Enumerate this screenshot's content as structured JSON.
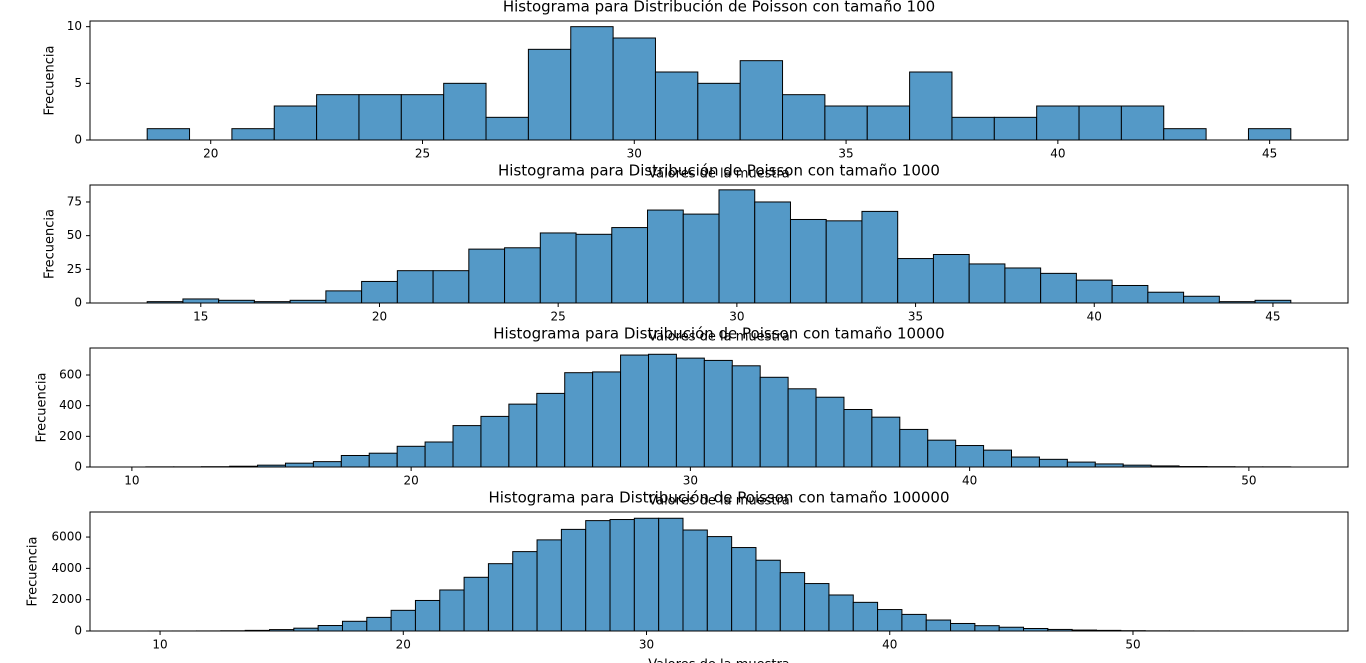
{
  "chart_data": [
    {
      "type": "histogram",
      "title": "Histograma para Distribución de Poisson con tamaño 100",
      "x_label": "Valores de la muestra",
      "y_label": "Frecuencia",
      "color": "#5499c7",
      "bins": [
        18.5,
        19.5,
        20.5,
        21.5,
        22.5,
        23.5,
        24.5,
        25.5,
        26.5,
        27.5,
        28.5,
        29.5,
        30.5,
        31.5,
        32.5,
        33.5,
        34.5,
        35.5,
        36.5,
        37.5,
        38.5,
        39.5,
        40.5,
        41.5,
        42.5,
        43.5,
        44.5,
        45.5
      ],
      "counts": [
        1,
        0,
        1,
        3,
        4,
        4,
        4,
        5,
        2,
        8,
        10,
        9,
        6,
        5,
        7,
        4,
        3,
        3,
        6,
        2,
        2,
        3,
        3,
        3,
        1,
        0,
        1
      ],
      "xlim": [
        17.15,
        46.85
      ],
      "xticks": [
        20,
        25,
        30,
        35,
        40,
        45
      ],
      "ylim": [
        0,
        10.5
      ],
      "yticks": [
        0,
        5,
        10
      ]
    },
    {
      "type": "histogram",
      "title": "Histograma para Distribución de Poisson con tamaño 1000",
      "x_label": "Valores de la muestra",
      "y_label": "Frecuencia",
      "color": "#5499c7",
      "bins": [
        13.5,
        14.5,
        15.5,
        16.5,
        17.5,
        18.5,
        19.5,
        20.5,
        21.5,
        22.5,
        23.5,
        24.5,
        25.5,
        26.5,
        27.5,
        28.5,
        29.5,
        30.5,
        31.5,
        32.5,
        33.5,
        34.5,
        35.5,
        36.5,
        37.5,
        38.5,
        39.5,
        40.5,
        41.5,
        42.5,
        43.5,
        44.5,
        45.5
      ],
      "counts": [
        1,
        3,
        2,
        1,
        2,
        9,
        16,
        24,
        24,
        40,
        41,
        52,
        51,
        56,
        69,
        66,
        84,
        75,
        62,
        61,
        68,
        33,
        36,
        29,
        26,
        22,
        17,
        13,
        8,
        5,
        1,
        2
      ],
      "xlim": [
        11.9,
        47.1
      ],
      "xticks": [
        15,
        20,
        25,
        30,
        35,
        40,
        45
      ],
      "ylim": [
        0,
        87.6
      ],
      "yticks": [
        0,
        25,
        50,
        75
      ]
    },
    {
      "type": "histogram",
      "title": "Histograma para Distribución de Poisson con tamaño 10000",
      "x_label": "Valores de la muestra",
      "y_label": "Frecuencia",
      "color": "#5499c7",
      "bins": [
        10.5,
        11.5,
        12.5,
        13.5,
        14.5,
        15.5,
        16.5,
        17.5,
        18.5,
        19.5,
        20.5,
        21.5,
        22.5,
        23.5,
        24.5,
        25.5,
        26.5,
        27.5,
        28.5,
        29.5,
        30.5,
        31.5,
        32.5,
        33.5,
        34.5,
        35.5,
        36.5,
        37.5,
        38.5,
        39.5,
        40.5,
        41.5,
        42.5,
        43.5,
        44.5,
        45.5,
        46.5,
        47.5,
        48.5,
        49.5,
        50.5,
        51.5
      ],
      "counts": [
        1,
        1,
        2,
        5,
        12,
        25,
        35,
        75,
        90,
        135,
        163,
        270,
        330,
        410,
        480,
        615,
        620,
        730,
        735,
        710,
        695,
        660,
        585,
        510,
        455,
        375,
        325,
        245,
        175,
        140,
        110,
        65,
        50,
        32,
        20,
        12,
        7,
        3,
        2,
        1,
        1
      ],
      "xlim": [
        8.5,
        53.55
      ],
      "xticks": [
        10,
        20,
        30,
        40,
        50
      ],
      "ylim": [
        0,
        776
      ],
      "yticks": [
        0,
        200,
        400,
        600
      ]
    },
    {
      "type": "histogram",
      "title": "Histograma para Distribución de Poisson con tamaño 100000",
      "x_label": "Valores de la muestra",
      "y_label": "Frecuencia",
      "color": "#5499c7",
      "bins": [
        9.5,
        10.5,
        11.5,
        12.5,
        13.5,
        14.5,
        15.5,
        16.5,
        17.5,
        18.5,
        19.5,
        20.5,
        21.5,
        22.5,
        23.5,
        24.5,
        25.5,
        26.5,
        27.5,
        28.5,
        29.5,
        30.5,
        31.5,
        32.5,
        33.5,
        34.5,
        35.5,
        36.5,
        37.5,
        38.5,
        39.5,
        40.5,
        41.5,
        42.5,
        43.5,
        44.5,
        45.5,
        46.5,
        47.5,
        48.5,
        49.5,
        50.5,
        51.5,
        52.5,
        53.5,
        54.5,
        55.5,
        56.5
      ],
      "counts": [
        1,
        2,
        5,
        15,
        40,
        90,
        180,
        350,
        620,
        870,
        1320,
        1950,
        2620,
        3430,
        4300,
        5070,
        5820,
        6490,
        7050,
        7120,
        7200,
        7200,
        6450,
        6030,
        5330,
        4520,
        3730,
        3030,
        2300,
        1830,
        1370,
        1060,
        700,
        480,
        340,
        240,
        160,
        100,
        60,
        40,
        20,
        10,
        5,
        3,
        2,
        1,
        1
      ],
      "xlim": [
        7.12,
        58.84
      ],
      "xticks": [
        10,
        20,
        30,
        40,
        50
      ],
      "ylim": [
        0,
        7600
      ],
      "yticks": [
        0,
        2000,
        4000,
        6000
      ]
    }
  ]
}
